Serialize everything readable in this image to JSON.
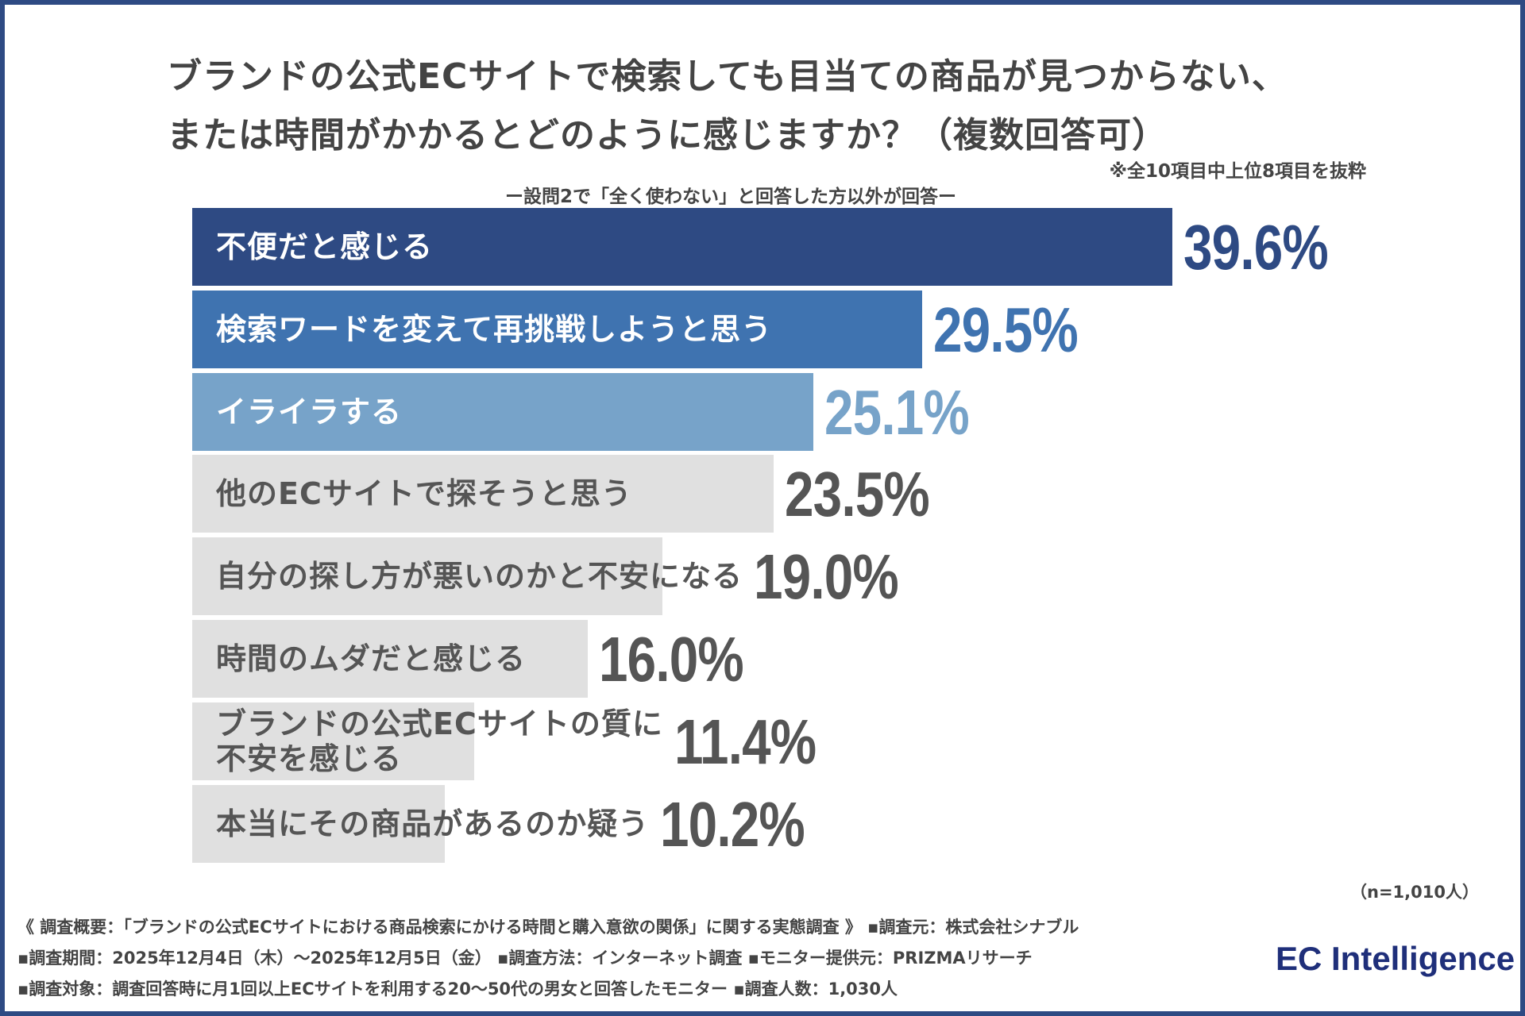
{
  "title_lines": [
    "ブランドの公式ECサイトで検索しても目当ての商品が見つからない、",
    "または時間がかかるとどのように感じますか？（複数回答可）"
  ],
  "note": "※全10項目中上位8項目を抜粋",
  "subtitle": "ー設問2で「全く使わない」と回答した方以外が回答ー",
  "chart_data": {
    "type": "bar",
    "orientation": "horizontal",
    "categories": [
      "不便だと感じる",
      "検索ワードを変えて再挑戦しようと思う",
      "イライラする",
      "他のECサイトで探そうと思う",
      "自分の探し方が悪いのかと不安になる",
      "時間のムダだと感じる",
      "ブランドの公式ECサイトの質に\n不安を感じる",
      "本当にその商品があるのか疑う"
    ],
    "values": [
      39.6,
      29.5,
      25.1,
      23.5,
      19.0,
      16.0,
      11.4,
      10.2
    ],
    "value_labels": [
      "39.6%",
      "29.5%",
      "25.1%",
      "23.5%",
      "19.0%",
      "16.0%",
      "11.4%",
      "10.2%"
    ],
    "bar_colors": [
      "#2e4a83",
      "#3f73b0",
      "#77a3c9",
      "#e0e0e0",
      "#e0e0e0",
      "#e0e0e0",
      "#e0e0e0",
      "#e0e0e0"
    ],
    "label_colors": [
      "#ffffff",
      "#ffffff",
      "#ffffff",
      "#555555",
      "#555555",
      "#555555",
      "#555555",
      "#555555"
    ],
    "value_colors": [
      "#2e4a83",
      "#3f73b0",
      "#77a3c9",
      "#555555",
      "#555555",
      "#555555",
      "#555555",
      "#555555"
    ],
    "unit": "%"
  },
  "sample": "（n=1,010人）",
  "footer": [
    "《 調査概要：「ブランドの公式ECサイトにおける商品検索にかける時間と購入意欲の関係」に関する実態調査 》 ▪調査元：株式会社シナブル",
    "▪調査期間：2025年12月4日（木）～2025年12月5日（金） ▪調査方法：インターネット調査 ▪モニター提供元：PRIZMAリサーチ",
    "▪調査対象：調査回答時に月1回以上ECサイトを利用する20～50代の男女と回答したモニター ▪調査人数：1,030人"
  ],
  "logo": "EC Intelligence",
  "border_color": "#2e4a83"
}
